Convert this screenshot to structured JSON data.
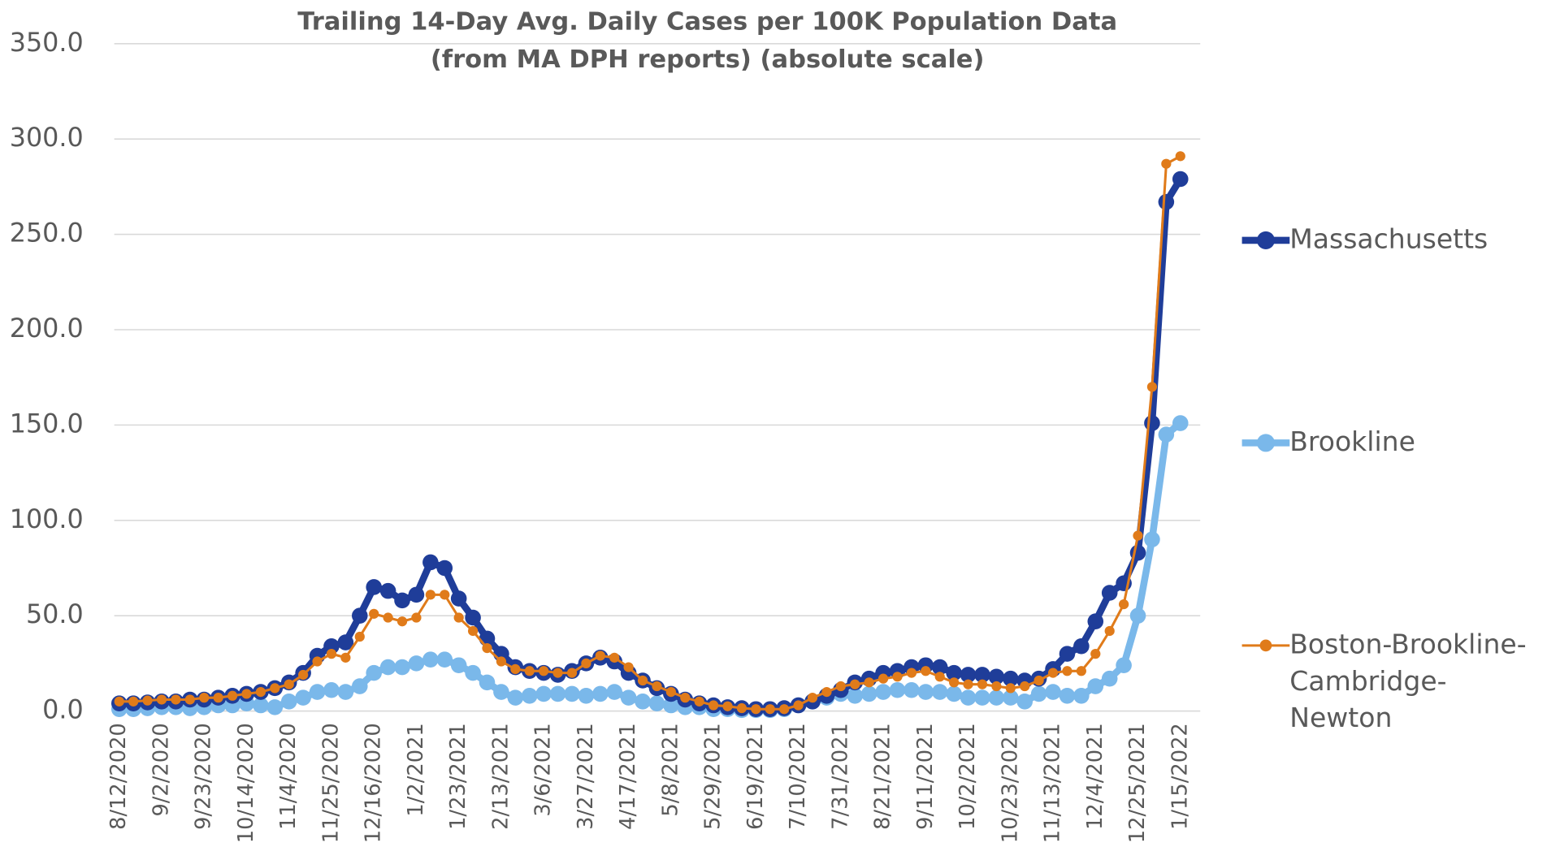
{
  "chart_data": {
    "type": "line",
    "title": "Trailing 14-Day Avg. Daily Cases per 100K Population Data",
    "subtitle": "(from MA DPH reports) (absolute scale)",
    "categories": [
      "8/12/2020",
      null,
      null,
      "9/2/2020",
      null,
      null,
      "9/23/2020",
      null,
      null,
      "10/14/2020",
      null,
      null,
      "11/4/2020",
      null,
      null,
      "11/25/2020",
      null,
      null,
      "12/16/2020",
      null,
      null,
      "1/2/2021",
      null,
      null,
      "1/23/2021",
      null,
      null,
      "2/13/2021",
      null,
      null,
      "3/6/2021",
      null,
      null,
      "3/27/2021",
      null,
      null,
      "4/17/2021",
      null,
      null,
      "5/8/2021",
      null,
      null,
      "5/29/2021",
      null,
      null,
      "6/19/2021",
      null,
      null,
      "7/10/2021",
      null,
      null,
      "7/31/2021",
      null,
      null,
      "8/21/2021",
      null,
      null,
      "9/11/2021",
      null,
      null,
      "10/2/2021",
      null,
      null,
      "10/23/2021",
      null,
      null,
      "11/13/2021",
      null,
      null,
      "12/4/2021",
      null,
      null,
      "12/25/2021",
      null,
      null,
      "1/15/2022"
    ],
    "series": [
      {
        "name": "Massachusetts",
        "color": "#1f3d99",
        "values": [
          4,
          4,
          4.5,
          5,
          5,
          6,
          6,
          7,
          8,
          9,
          10,
          12,
          15,
          20,
          29,
          34,
          36,
          50,
          65,
          63,
          58,
          61,
          78,
          75,
          59,
          49,
          38,
          30,
          23,
          21,
          20,
          19,
          21,
          25,
          28,
          26,
          20,
          16,
          12,
          9,
          6,
          4,
          3,
          2,
          1.5,
          1,
          1,
          1.5,
          3,
          5,
          8,
          11,
          15,
          17,
          20,
          21,
          23,
          24,
          23,
          20,
          19,
          19,
          18,
          17,
          16,
          17,
          22,
          30,
          34,
          47,
          62,
          67,
          83,
          151,
          267,
          279
        ]
      },
      {
        "name": "Brookline",
        "color": "#7ab8ea",
        "values": [
          1,
          1,
          1.5,
          2,
          2,
          1.5,
          2,
          3,
          3,
          4,
          3,
          2,
          5,
          7,
          10,
          11,
          10,
          13,
          20,
          23,
          23,
          25,
          27,
          27,
          24,
          20,
          15,
          10,
          7,
          8,
          9,
          9,
          9,
          8,
          9,
          10,
          7,
          5,
          4,
          3,
          2,
          2,
          1,
          1,
          0.5,
          0.5,
          0.5,
          1,
          3,
          5,
          7,
          9,
          8,
          9,
          10,
          11,
          11,
          10,
          10,
          9,
          7,
          7,
          7,
          7,
          5,
          9,
          10,
          8,
          8,
          13,
          17,
          24,
          50,
          90,
          145,
          151
        ]
      },
      {
        "name": "Boston-Brookline-Cambridge-Newton",
        "color": "#e07b1a",
        "values": [
          5,
          5,
          5.5,
          6,
          6,
          6,
          7,
          7,
          8,
          9,
          10,
          12,
          14,
          19,
          26,
          30,
          28,
          39,
          51,
          49,
          47,
          49,
          61,
          61,
          49,
          42,
          33,
          26,
          22,
          21,
          21,
          20,
          20,
          25,
          29,
          28,
          23,
          16,
          13,
          10,
          7,
          5,
          3,
          2.5,
          1.5,
          1,
          1,
          1,
          3,
          7,
          10,
          13,
          14,
          15,
          17,
          18,
          20,
          21,
          18,
          15,
          14,
          14,
          13,
          12,
          13,
          16,
          20,
          21,
          21,
          30,
          42,
          56,
          92,
          170,
          287,
          291
        ]
      }
    ],
    "ylim": [
      0,
      350
    ],
    "yticks": [
      {
        "value": 0,
        "label": "0.0"
      },
      {
        "value": 50,
        "label": "50.0"
      },
      {
        "value": 100,
        "label": "100.0"
      },
      {
        "value": 150,
        "label": "150.0"
      },
      {
        "value": 200,
        "label": "200.0"
      },
      {
        "value": 250,
        "label": "250.0"
      },
      {
        "value": 300,
        "label": "300.0"
      },
      {
        "value": 350,
        "label": "350.0"
      }
    ],
    "grid": true,
    "legend": "right"
  }
}
